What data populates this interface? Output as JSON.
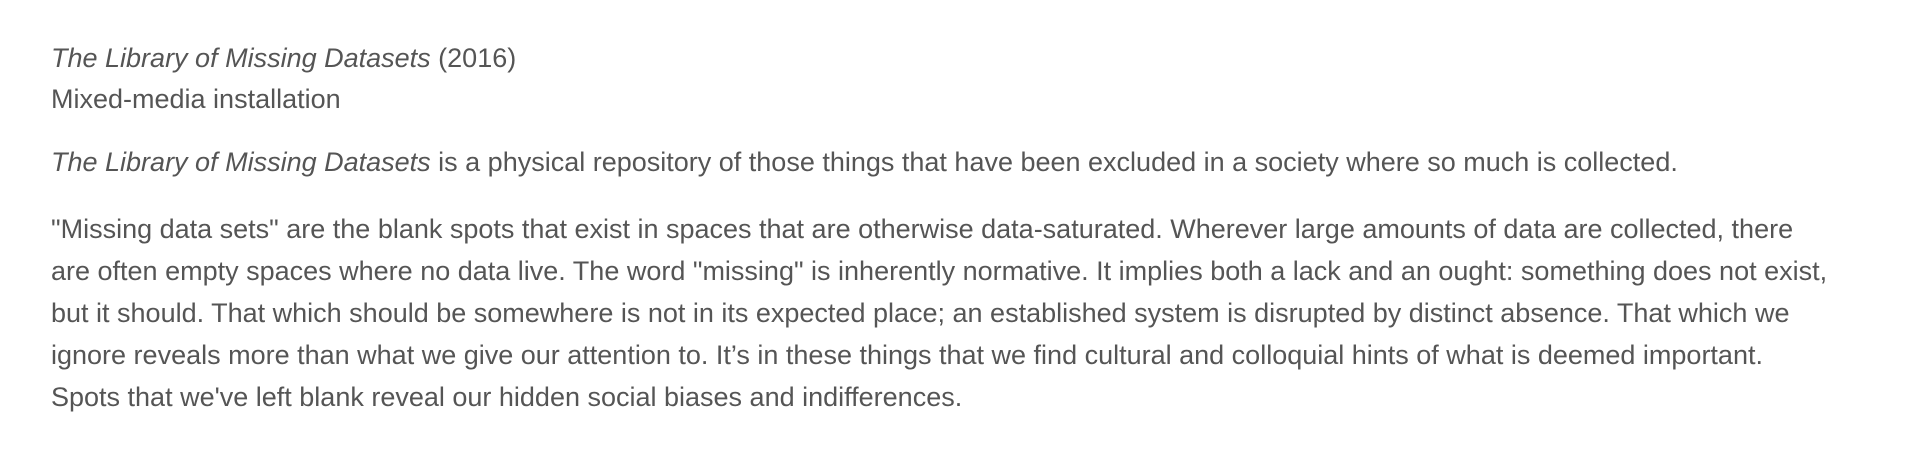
{
  "artwork": {
    "title": "The Library of Missing Datasets",
    "year": "(2016)",
    "medium": "Mixed-media installation"
  },
  "intro": {
    "title_italic": "The Library of Missing Datasets",
    "text": " is a physical repository of those things that have been excluded in a society where so much is collected."
  },
  "body_paragraph": "\"Missing data sets\" are the blank spots that exist in spaces that are otherwise data-saturated. Wherever large amounts of data are collected, there are often empty spaces where no data live. The word \"missing\" is inherently normative. It implies both a lack and an ought: something does not exist, but it should. That which should be somewhere is not in its expected place; an established system is disrupted by distinct absence. That which we ignore reveals more than what we give our attention to. It’s in these things that we find cultural and colloquial hints of what is deemed important. Spots that we've left blank reveal our hidden social biases and indifferences."
}
